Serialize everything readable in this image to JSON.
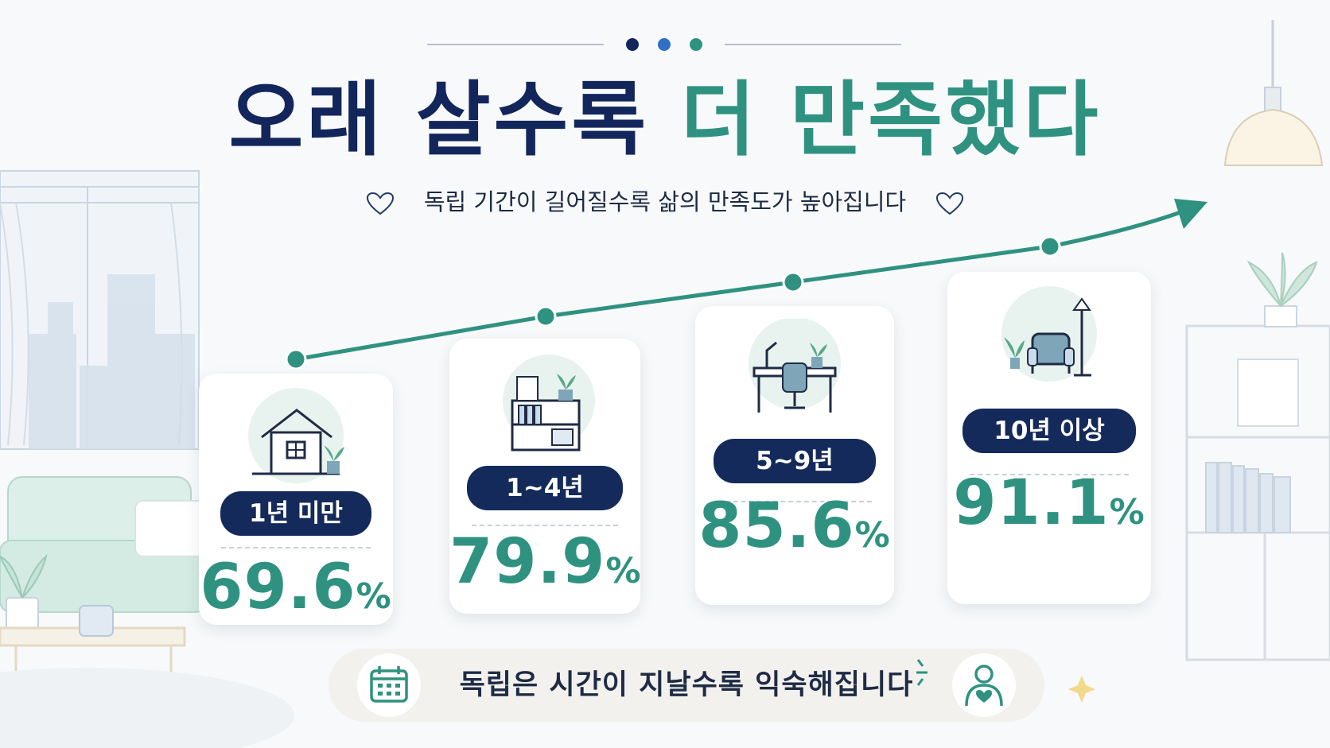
{
  "title": {
    "part1": "오래 살수록",
    "part2": "더 만족했다"
  },
  "subtitle": "독립 기간이 길어질수록 삶의 만족도가 높아집니다",
  "cards": [
    {
      "label": "1년 미만",
      "value": "69.6",
      "unit": "%",
      "icon": "house-icon"
    },
    {
      "label": "1~4년",
      "value": "79.9",
      "unit": "%",
      "icon": "bookshelf-icon"
    },
    {
      "label": "5~9년",
      "value": "85.6",
      "unit": "%",
      "icon": "desk-icon"
    },
    {
      "label": "10년 이상",
      "value": "91.1",
      "unit": "%",
      "icon": "armchair-icon"
    }
  ],
  "footer": {
    "text": "독립은 시간이 지날수록 익숙해집니다",
    "left_icon": "calendar-icon",
    "right_icon": "person-heart-icon"
  },
  "colors": {
    "navy": "#13265c",
    "teal": "#2f9280",
    "pill": "#142a5b"
  }
}
